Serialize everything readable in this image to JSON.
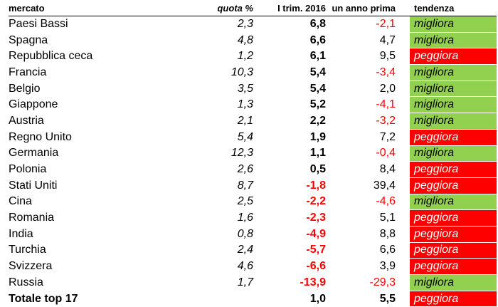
{
  "headers": {
    "mercato": "mercato",
    "quota": "quota %",
    "trim": "I trim. 2016",
    "prev": "un anno prima",
    "trend": "tendenza"
  },
  "rows": [
    {
      "mercato": "Paesi Bassi",
      "quota": "2,3",
      "trim": "6,8",
      "prev": "-2,1",
      "trend": "migliora"
    },
    {
      "mercato": "Spagna",
      "quota": "4,8",
      "trim": "6,6",
      "prev": "4,7",
      "trend": "migliora"
    },
    {
      "mercato": "Repubblica ceca",
      "quota": "1,2",
      "trim": "6,1",
      "prev": "9,5",
      "trend": "peggiora"
    },
    {
      "mercato": "Francia",
      "quota": "10,3",
      "trim": "5,4",
      "prev": "-3,4",
      "trend": "migliora"
    },
    {
      "mercato": "Belgio",
      "quota": "3,5",
      "trim": "5,4",
      "prev": "2,0",
      "trend": "migliora"
    },
    {
      "mercato": "Giappone",
      "quota": "1,3",
      "trim": "5,2",
      "prev": "-4,1",
      "trend": "migliora"
    },
    {
      "mercato": "Austria",
      "quota": "2,1",
      "trim": "2,2",
      "prev": "-3,2",
      "trend": "migliora"
    },
    {
      "mercato": "Regno Unito",
      "quota": "5,4",
      "trim": "1,9",
      "prev": "7,2",
      "trend": "peggiora"
    },
    {
      "mercato": "Germania",
      "quota": "12,3",
      "trim": "1,1",
      "prev": "-0,4",
      "trend": "migliora"
    },
    {
      "mercato": "Polonia",
      "quota": "2,6",
      "trim": "0,5",
      "prev": "8,4",
      "trend": "peggiora"
    },
    {
      "mercato": "Stati Uniti",
      "quota": "8,7",
      "trim": "-1,8",
      "prev": "39,4",
      "trend": "peggiora"
    },
    {
      "mercato": "Cina",
      "quota": "2,5",
      "trim": "-2,2",
      "prev": "-4,6",
      "trend": "migliora"
    },
    {
      "mercato": "Romania",
      "quota": "1,6",
      "trim": "-2,3",
      "prev": "5,1",
      "trend": "peggiora"
    },
    {
      "mercato": "India",
      "quota": "0,8",
      "trim": "-4,9",
      "prev": "8,8",
      "trend": "peggiora"
    },
    {
      "mercato": "Turchia",
      "quota": "2,4",
      "trim": "-5,7",
      "prev": "6,6",
      "trend": "peggiora"
    },
    {
      "mercato": "Svizzera",
      "quota": "4,6",
      "trim": "-6,6",
      "prev": "3,9",
      "trend": "peggiora"
    },
    {
      "mercato": "Russia",
      "quota": "1,7",
      "trim": "-13,9",
      "prev": "-29,3",
      "trend": "migliora"
    }
  ],
  "total": {
    "mercato": "Totale top 17",
    "quota": "",
    "trim": "1,0",
    "prev": "5,5",
    "trend": "peggiora"
  },
  "colors": {
    "migliora": "#92d050",
    "peggiora": "#ff0000",
    "negative_text": "#ff0000"
  }
}
